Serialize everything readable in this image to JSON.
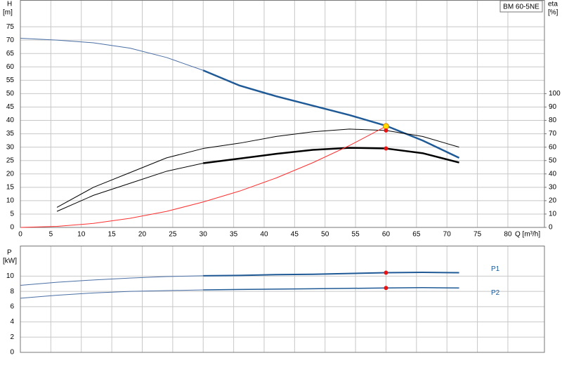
{
  "chart_data": [
    {
      "type": "line",
      "title": "BM 60-5NE",
      "xlabel": "Q [m³/h]",
      "ylabel": [
        "H",
        "[m]"
      ],
      "y2label": [
        "eta",
        "[%]"
      ],
      "x": [
        0,
        6,
        12,
        18,
        24,
        30,
        36,
        42,
        48,
        54,
        60,
        66,
        72
      ],
      "xlim": [
        0,
        86
      ],
      "xticks": [
        0,
        5,
        10,
        15,
        20,
        25,
        30,
        35,
        40,
        45,
        50,
        55,
        60,
        65,
        70,
        75,
        80
      ],
      "ylim": [
        0,
        85
      ],
      "yticks": [
        0,
        5,
        10,
        15,
        20,
        25,
        30,
        35,
        40,
        45,
        50,
        55,
        60,
        65,
        70,
        75
      ],
      "y2lim": [
        0,
        170
      ],
      "y2ticks": [
        0,
        10,
        20,
        30,
        40,
        50,
        60,
        70,
        80,
        90,
        100
      ],
      "grid": true,
      "series": [
        {
          "color": "#4a6fa5",
          "width": 1,
          "values": [
            70.7,
            70,
            69,
            67,
            63.5,
            58.7,
            null,
            null,
            null,
            null,
            null,
            null,
            null
          ]
        },
        {
          "color": "#1f5a96",
          "width": 2.5,
          "values": [
            null,
            null,
            null,
            null,
            null,
            58.7,
            53,
            49,
            45.5,
            42,
            38,
            32.5,
            26
          ]
        },
        {
          "color": "#000000",
          "width": 1,
          "axis": "y2",
          "values": [
            null,
            15,
            30,
            41,
            52,
            59,
            63,
            68,
            71.5,
            73.5,
            72.5,
            68,
            60
          ]
        },
        {
          "color": "#000000",
          "width": 1,
          "axis": "y2",
          "values": [
            null,
            12,
            24,
            33,
            42,
            48,
            null,
            null,
            null,
            null,
            null,
            null,
            null
          ]
        },
        {
          "color": "#000000",
          "width": 2.5,
          "axis": "y2",
          "values": [
            null,
            null,
            null,
            null,
            null,
            48,
            51.5,
            55,
            58,
            59.5,
            59,
            55.5,
            48.5
          ]
        },
        {
          "color": "#ff3030",
          "width": 1,
          "values": [
            0,
            0.38,
            1.5,
            3.4,
            6,
            9.5,
            13.6,
            18.5,
            24.2,
            30.6,
            37.8,
            null,
            null
          ]
        }
      ],
      "markers": [
        {
          "x": 60,
          "y": 37.8,
          "color": "#ffdd00"
        },
        {
          "x": 60,
          "y": 72.5,
          "axis": "y2",
          "color": "#ee1111"
        },
        {
          "x": 60,
          "y": 59,
          "axis": "y2",
          "color": "#ee1111"
        }
      ]
    },
    {
      "type": "line",
      "ylabel": [
        "P",
        "[kW]"
      ],
      "x": [
        0,
        6,
        12,
        18,
        24,
        30,
        36,
        42,
        48,
        54,
        60,
        66,
        72
      ],
      "xlim": [
        0,
        86
      ],
      "xgrid": [
        0,
        5,
        10,
        15,
        20,
        25,
        30,
        35,
        40,
        45,
        50,
        55,
        60,
        65,
        70,
        75,
        80
      ],
      "ylim": [
        0,
        14
      ],
      "yticks": [
        0,
        2,
        4,
        6,
        8,
        10
      ],
      "grid": true,
      "series": [
        {
          "color": "#4a6fa5",
          "width": 1,
          "values": [
            8.8,
            9.2,
            9.5,
            9.75,
            9.95,
            10.05,
            null,
            null,
            null,
            null,
            null,
            null,
            null
          ]
        },
        {
          "name": "P1",
          "color": "#1f5a96",
          "width": 2,
          "values": [
            null,
            null,
            null,
            null,
            null,
            10.05,
            10.1,
            10.2,
            10.25,
            10.35,
            10.45,
            10.5,
            10.45
          ]
        },
        {
          "color": "#4a6fa5",
          "width": 1,
          "values": [
            7.1,
            7.5,
            7.8,
            8.0,
            8.1,
            8.2,
            null,
            null,
            null,
            null,
            null,
            null,
            null
          ]
        },
        {
          "name": "P2",
          "color": "#1f5a96",
          "width": 1.5,
          "values": [
            null,
            null,
            null,
            null,
            null,
            8.2,
            8.25,
            8.3,
            8.35,
            8.4,
            8.45,
            8.5,
            8.45
          ]
        }
      ],
      "markers": [
        {
          "x": 60,
          "y": 10.45,
          "color": "#ee1111"
        },
        {
          "x": 60,
          "y": 8.45,
          "color": "#ee1111"
        }
      ]
    }
  ]
}
